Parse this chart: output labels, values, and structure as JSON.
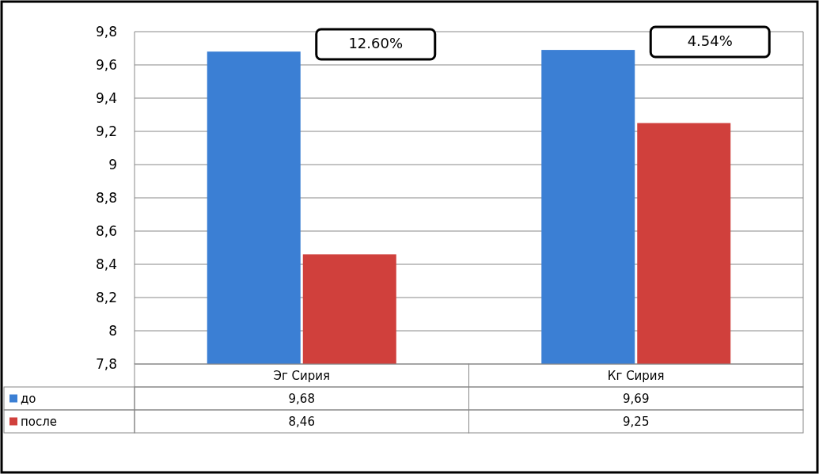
{
  "chart_data": {
    "type": "bar",
    "categories": [
      "Эг Сирия",
      "Кг Сирия"
    ],
    "series": [
      {
        "name": "до",
        "color": "#3b7fd4",
        "values": [
          9.68,
          9.69
        ],
        "value_labels": [
          "9,68",
          "9,69"
        ]
      },
      {
        "name": "после",
        "color": "#d0403c",
        "values": [
          8.46,
          9.25
        ],
        "value_labels": [
          "8,46",
          "9,25"
        ]
      }
    ],
    "ylim": [
      7.8,
      9.8
    ],
    "yticks": [
      {
        "value": 7.8,
        "label": "7,8"
      },
      8,
      {
        "value": 8.2,
        "label": "8,2"
      },
      {
        "value": 8.4,
        "label": "8,4"
      },
      {
        "value": 8.6,
        "label": "8,6"
      },
      {
        "value": 8.8,
        "label": "8,8"
      },
      9,
      {
        "value": 9.2,
        "label": "9,2"
      },
      {
        "value": 9.4,
        "label": "9,4"
      },
      {
        "value": 9.6,
        "label": "9,6"
      },
      {
        "value": 9.8,
        "label": "9,8"
      }
    ],
    "grid": "y",
    "legend": "bottom left",
    "annotations": [
      "12.60%",
      "4.54%"
    ]
  }
}
